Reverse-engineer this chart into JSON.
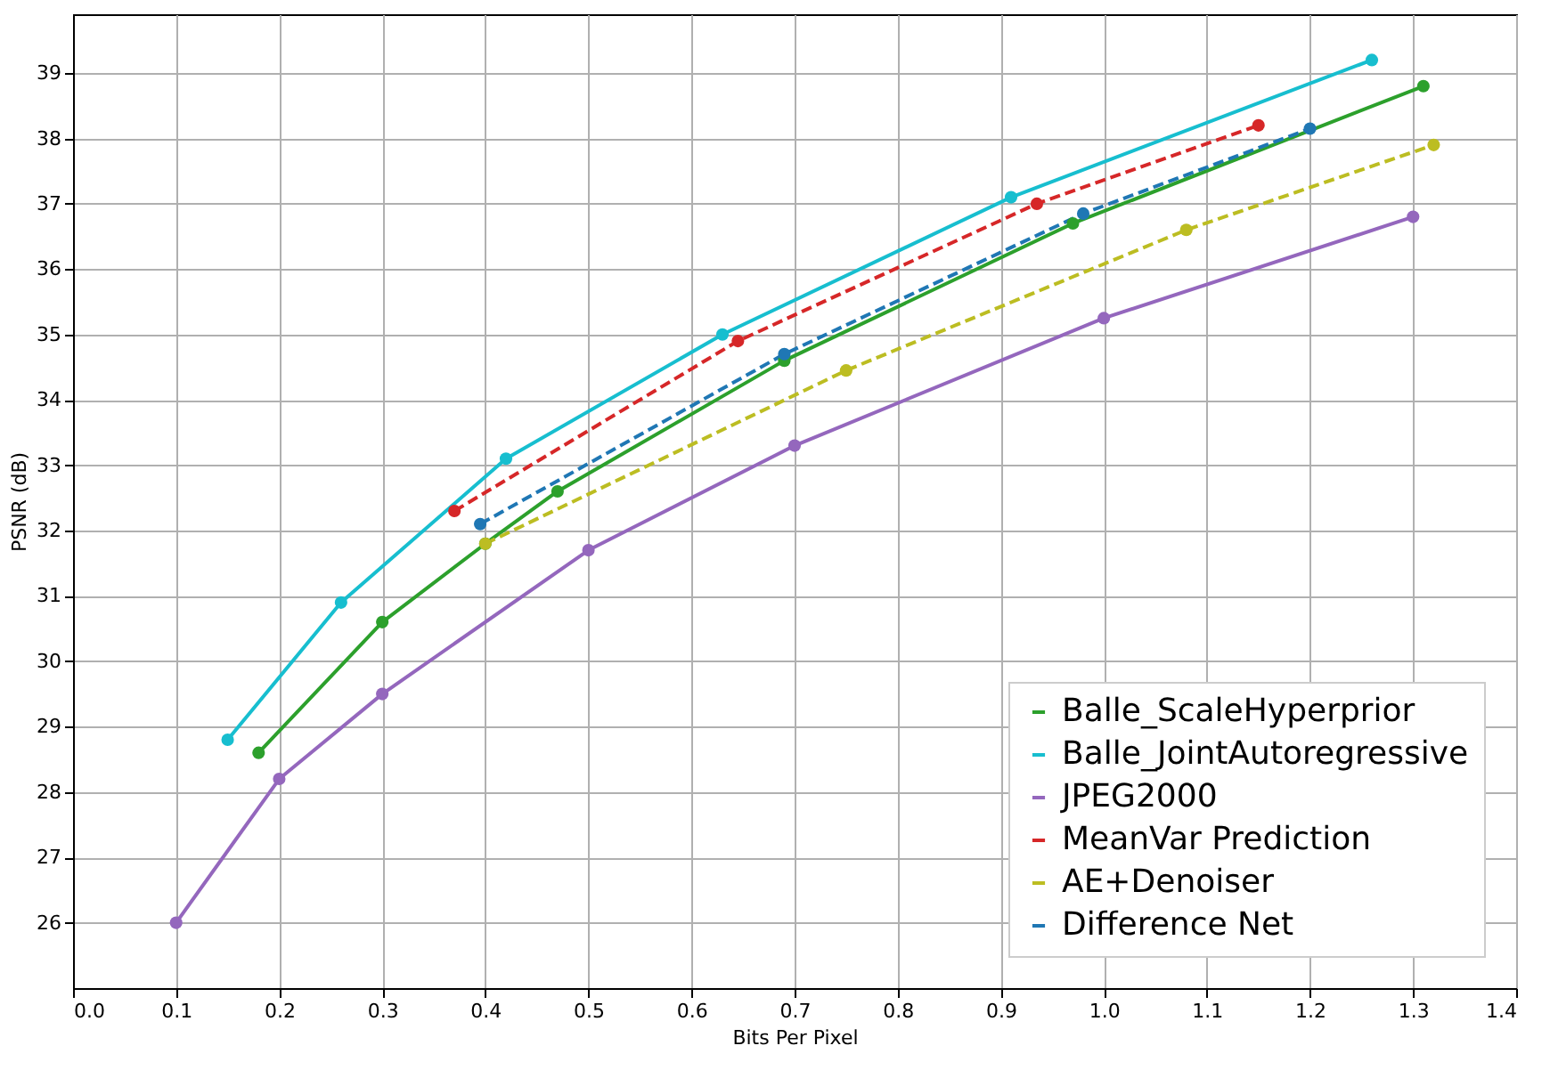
{
  "chart_data": {
    "type": "line",
    "xlabel": "Bits Per Pixel",
    "ylabel": "PSNR (dB)",
    "xlim": [
      0,
      1.4
    ],
    "ylim": [
      25,
      39.9
    ],
    "xticks": [
      {
        "value": 0,
        "label": "0.0"
      },
      0.1,
      0.2,
      0.3,
      0.4,
      0.5,
      0.6,
      0.7,
      0.8,
      0.9,
      {
        "value": 1,
        "label": "1.0"
      },
      1.1,
      1.2,
      1.3,
      1.4
    ],
    "yticks": [
      26,
      27,
      28,
      29,
      30,
      31,
      32,
      33,
      34,
      35,
      36,
      37,
      38,
      39
    ],
    "grid": true,
    "legend": "bottom right",
    "marker": "circle",
    "series": [
      {
        "name": "Balle_ScaleHyperprior",
        "color": "#2ca02c",
        "line_style": "solid",
        "x": [
          0.18,
          0.3,
          0.4,
          0.47,
          0.69,
          0.97,
          1.31
        ],
        "values": [
          28.6,
          30.6,
          31.8,
          32.6,
          34.6,
          36.7,
          38.8
        ]
      },
      {
        "name": "Balle_JointAutoregressive",
        "color": "#17becf",
        "line_style": "solid",
        "x": [
          0.15,
          0.26,
          0.42,
          0.63,
          0.91,
          1.26
        ],
        "values": [
          28.8,
          30.9,
          33.1,
          35.0,
          37.1,
          39.2
        ]
      },
      {
        "name": "JPEG2000",
        "color": "#9467bd",
        "line_style": "solid",
        "x": [
          0.1,
          0.2,
          0.3,
          0.5,
          0.7,
          1.0,
          1.3
        ],
        "values": [
          26.0,
          28.2,
          29.5,
          31.7,
          33.3,
          35.25,
          36.8
        ]
      },
      {
        "name": "MeanVar Prediction",
        "color": "#d62728",
        "line_style": "dashed",
        "x": [
          0.37,
          0.645,
          0.935,
          1.15
        ],
        "values": [
          32.3,
          34.9,
          37.0,
          38.2
        ]
      },
      {
        "name": "AE+Denoiser",
        "color": "#bcbd22",
        "line_style": "dashed",
        "x": [
          0.4,
          0.75,
          1.08,
          1.32
        ],
        "values": [
          31.8,
          34.45,
          36.6,
          37.9
        ]
      },
      {
        "name": "Difference Net",
        "color": "#1f77b4",
        "line_style": "dashed",
        "x": [
          0.395,
          0.69,
          0.98,
          1.2
        ],
        "values": [
          32.1,
          34.7,
          36.85,
          38.15
        ]
      }
    ]
  }
}
